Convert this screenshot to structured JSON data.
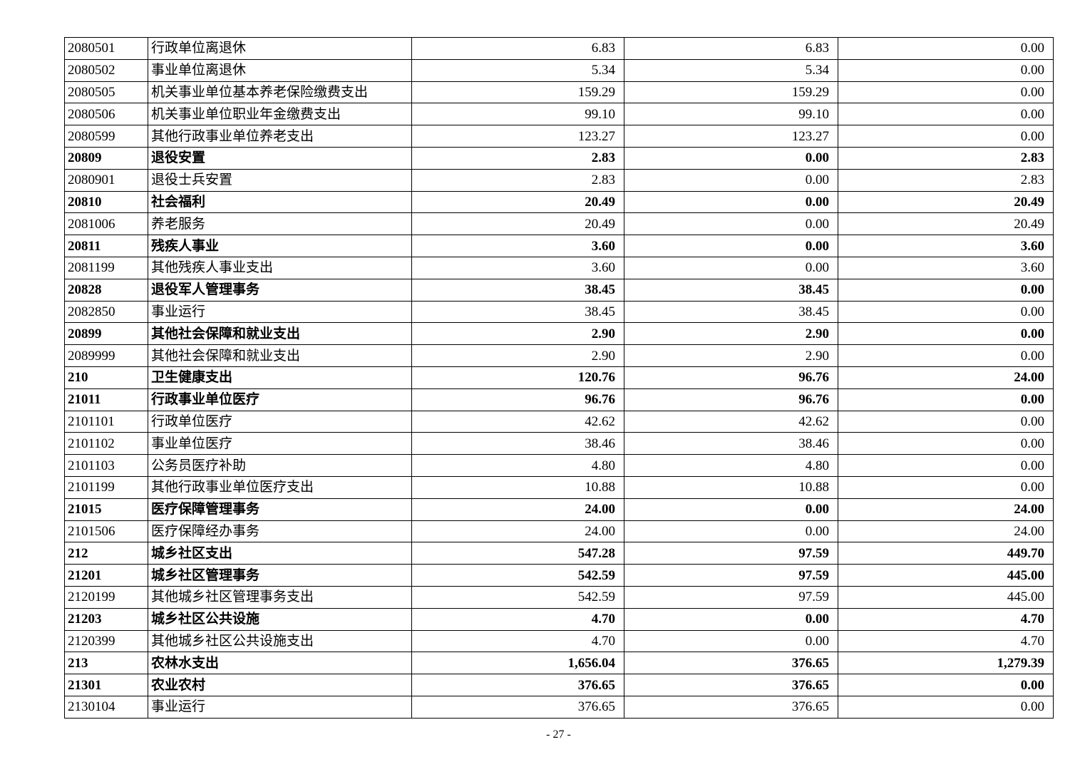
{
  "page": {
    "number_label": "- 27 -"
  },
  "table": {
    "columns": [
      "code",
      "name",
      "amount1",
      "amount2",
      "amount3"
    ],
    "rows": [
      {
        "code": "2080501",
        "name": "行政单位离退休",
        "a1": "6.83",
        "a2": "6.83",
        "a3": "0.00",
        "bold": false
      },
      {
        "code": "2080502",
        "name": "事业单位离退休",
        "a1": "5.34",
        "a2": "5.34",
        "a3": "0.00",
        "bold": false
      },
      {
        "code": "2080505",
        "name": "机关事业单位基本养老保险缴费支出",
        "a1": "159.29",
        "a2": "159.29",
        "a3": "0.00",
        "bold": false
      },
      {
        "code": "2080506",
        "name": "机关事业单位职业年金缴费支出",
        "a1": "99.10",
        "a2": "99.10",
        "a3": "0.00",
        "bold": false
      },
      {
        "code": "2080599",
        "name": "其他行政事业单位养老支出",
        "a1": "123.27",
        "a2": "123.27",
        "a3": "0.00",
        "bold": false
      },
      {
        "code": "20809",
        "name": "退役安置",
        "a1": "2.83",
        "a2": "0.00",
        "a3": "2.83",
        "bold": true
      },
      {
        "code": "2080901",
        "name": "退役士兵安置",
        "a1": "2.83",
        "a2": "0.00",
        "a3": "2.83",
        "bold": false
      },
      {
        "code": "20810",
        "name": "社会福利",
        "a1": "20.49",
        "a2": "0.00",
        "a3": "20.49",
        "bold": true
      },
      {
        "code": "2081006",
        "name": "养老服务",
        "a1": "20.49",
        "a2": "0.00",
        "a3": "20.49",
        "bold": false
      },
      {
        "code": "20811",
        "name": "残疾人事业",
        "a1": "3.60",
        "a2": "0.00",
        "a3": "3.60",
        "bold": true
      },
      {
        "code": "2081199",
        "name": "其他残疾人事业支出",
        "a1": "3.60",
        "a2": "0.00",
        "a3": "3.60",
        "bold": false
      },
      {
        "code": "20828",
        "name": "退役军人管理事务",
        "a1": "38.45",
        "a2": "38.45",
        "a3": "0.00",
        "bold": true
      },
      {
        "code": "2082850",
        "name": "事业运行",
        "a1": "38.45",
        "a2": "38.45",
        "a3": "0.00",
        "bold": false
      },
      {
        "code": "20899",
        "name": "其他社会保障和就业支出",
        "a1": "2.90",
        "a2": "2.90",
        "a3": "0.00",
        "bold": true
      },
      {
        "code": "2089999",
        "name": "其他社会保障和就业支出",
        "a1": "2.90",
        "a2": "2.90",
        "a3": "0.00",
        "bold": false
      },
      {
        "code": "210",
        "name": "卫生健康支出",
        "a1": "120.76",
        "a2": "96.76",
        "a3": "24.00",
        "bold": true
      },
      {
        "code": "21011",
        "name": "行政事业单位医疗",
        "a1": "96.76",
        "a2": "96.76",
        "a3": "0.00",
        "bold": true
      },
      {
        "code": "2101101",
        "name": "行政单位医疗",
        "a1": "42.62",
        "a2": "42.62",
        "a3": "0.00",
        "bold": false
      },
      {
        "code": "2101102",
        "name": "事业单位医疗",
        "a1": "38.46",
        "a2": "38.46",
        "a3": "0.00",
        "bold": false
      },
      {
        "code": "2101103",
        "name": "公务员医疗补助",
        "a1": "4.80",
        "a2": "4.80",
        "a3": "0.00",
        "bold": false
      },
      {
        "code": "2101199",
        "name": "其他行政事业单位医疗支出",
        "a1": "10.88",
        "a2": "10.88",
        "a3": "0.00",
        "bold": false
      },
      {
        "code": "21015",
        "name": "医疗保障管理事务",
        "a1": "24.00",
        "a2": "0.00",
        "a3": "24.00",
        "bold": true
      },
      {
        "code": "2101506",
        "name": "医疗保障经办事务",
        "a1": "24.00",
        "a2": "0.00",
        "a3": "24.00",
        "bold": false
      },
      {
        "code": "212",
        "name": "城乡社区支出",
        "a1": "547.28",
        "a2": "97.59",
        "a3": "449.70",
        "bold": true
      },
      {
        "code": "21201",
        "name": "城乡社区管理事务",
        "a1": "542.59",
        "a2": "97.59",
        "a3": "445.00",
        "bold": true
      },
      {
        "code": "2120199",
        "name": "其他城乡社区管理事务支出",
        "a1": "542.59",
        "a2": "97.59",
        "a3": "445.00",
        "bold": false
      },
      {
        "code": "21203",
        "name": "城乡社区公共设施",
        "a1": "4.70",
        "a2": "0.00",
        "a3": "4.70",
        "bold": true
      },
      {
        "code": "2120399",
        "name": "其他城乡社区公共设施支出",
        "a1": "4.70",
        "a2": "0.00",
        "a3": "4.70",
        "bold": false
      },
      {
        "code": "213",
        "name": "农林水支出",
        "a1": "1,656.04",
        "a2": "376.65",
        "a3": "1,279.39",
        "bold": true
      },
      {
        "code": "21301",
        "name": "农业农村",
        "a1": "376.65",
        "a2": "376.65",
        "a3": "0.00",
        "bold": true
      },
      {
        "code": "2130104",
        "name": "事业运行",
        "a1": "376.65",
        "a2": "376.65",
        "a3": "0.00",
        "bold": false
      }
    ]
  }
}
